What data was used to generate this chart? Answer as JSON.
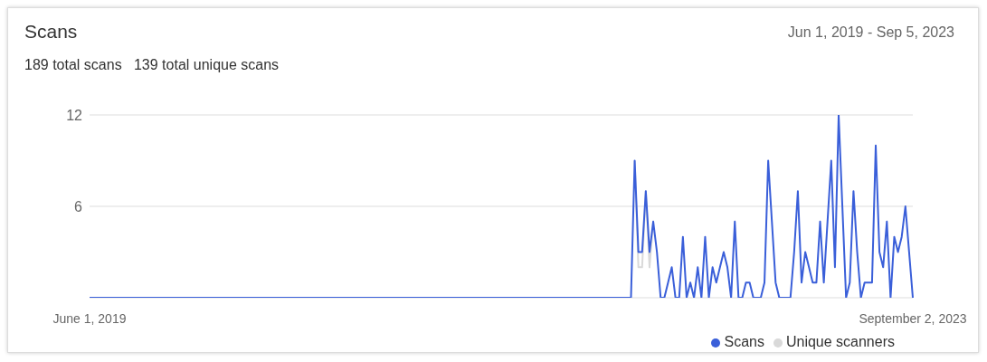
{
  "chart_data": {
    "type": "line",
    "title": "Scans",
    "subtitle": "189 total scans   139 total unique scans",
    "annotations": [
      "Jun 1, 2019 - Sep 5, 2023"
    ],
    "categories": [
      "June 1, 2019",
      null,
      null,
      null,
      null,
      null,
      null,
      null,
      null,
      null,
      null,
      null,
      null,
      null,
      null,
      null,
      null,
      null,
      null,
      null,
      null,
      null,
      null,
      null,
      null,
      null,
      null,
      null,
      null,
      null,
      null,
      null,
      null,
      null,
      null,
      null,
      null,
      null,
      null,
      null,
      null,
      null,
      null,
      null,
      null,
      null,
      null,
      null,
      null,
      null,
      null,
      null,
      null,
      null,
      null,
      null,
      null,
      null,
      null,
      null,
      null,
      null,
      null,
      null,
      null,
      null,
      null,
      null,
      null,
      null,
      null,
      null,
      null,
      null,
      null,
      null,
      null,
      null,
      null,
      null,
      null,
      null,
      null,
      null,
      null,
      null,
      null,
      null,
      null,
      null,
      null,
      null,
      null,
      null,
      null,
      null,
      null,
      null,
      null,
      null,
      null,
      null,
      null,
      null,
      null,
      null,
      null,
      null,
      null,
      null,
      null,
      null,
      null,
      null,
      null,
      null,
      null,
      null,
      null,
      null,
      null,
      null,
      null,
      null,
      null,
      null,
      null,
      null,
      null,
      null,
      null,
      null,
      null,
      null,
      null,
      null,
      null,
      null,
      null,
      null,
      null,
      null,
      null,
      null,
      null,
      null,
      null,
      null,
      null,
      null,
      null,
      null,
      null,
      null,
      null,
      null,
      null,
      null,
      null,
      null,
      null,
      null,
      null,
      null,
      null,
      null,
      null,
      null,
      null,
      null,
      null,
      null,
      null,
      null,
      null,
      null,
      null,
      null,
      null,
      null,
      null,
      null,
      null,
      null,
      null,
      null,
      null,
      null,
      null,
      null,
      null,
      null,
      null,
      null,
      null,
      null,
      null,
      null,
      null,
      null,
      null,
      null,
      null,
      null,
      null,
      null,
      null,
      null,
      null,
      null,
      null,
      null,
      null,
      null,
      null,
      null,
      null,
      null,
      null,
      null,
      null,
      null,
      "September 2, 2023"
    ],
    "series": [
      {
        "name": "Unique scanners",
        "color": "#d9d9d9",
        "values": [
          null,
          null,
          null,
          null,
          null,
          null,
          null,
          null,
          null,
          null,
          null,
          null,
          null,
          null,
          null,
          null,
          null,
          null,
          null,
          null,
          null,
          null,
          null,
          null,
          null,
          null,
          null,
          null,
          null,
          null,
          null,
          null,
          null,
          null,
          null,
          null,
          null,
          null,
          null,
          null,
          null,
          null,
          null,
          null,
          null,
          null,
          null,
          null,
          null,
          null,
          null,
          null,
          null,
          null,
          null,
          null,
          null,
          null,
          null,
          null,
          null,
          null,
          null,
          null,
          null,
          null,
          null,
          null,
          null,
          null,
          null,
          null,
          null,
          null,
          null,
          null,
          null,
          null,
          null,
          null,
          null,
          null,
          null,
          null,
          null,
          null,
          null,
          null,
          null,
          null,
          null,
          null,
          null,
          null,
          null,
          null,
          null,
          null,
          null,
          null,
          null,
          null,
          null,
          null,
          null,
          null,
          null,
          null,
          null,
          null,
          null,
          null,
          null,
          null,
          null,
          null,
          null,
          null,
          null,
          null,
          null,
          null,
          null,
          null,
          null,
          null,
          null,
          null,
          null,
          null,
          null,
          null,
          null,
          null,
          null,
          null,
          null,
          null,
          null,
          null,
          null,
          null,
          null,
          null,
          null,
          null,
          null,
          9,
          2,
          2,
          7,
          2,
          5,
          null,
          null,
          null,
          null,
          null,
          null,
          null,
          null,
          null,
          null,
          null,
          null,
          null,
          null,
          null,
          null,
          null,
          null,
          null,
          null,
          null,
          null,
          null,
          null,
          null,
          null,
          null,
          null,
          null,
          null,
          null,
          null,
          null,
          null,
          null,
          null,
          null,
          null,
          null,
          null,
          null,
          null,
          null,
          null,
          null,
          null,
          null,
          null,
          null,
          null,
          null,
          null,
          null,
          null,
          null,
          null,
          null,
          null,
          null,
          null,
          null,
          null,
          null,
          null,
          null,
          null,
          null,
          null,
          null,
          null
        ]
      },
      {
        "name": "Scans",
        "color": "#3a5fd9",
        "values": [
          0,
          0,
          0,
          0,
          0,
          0,
          0,
          0,
          0,
          0,
          0,
          0,
          0,
          0,
          0,
          0,
          0,
          0,
          0,
          0,
          0,
          0,
          0,
          0,
          0,
          0,
          0,
          0,
          0,
          0,
          0,
          0,
          0,
          0,
          0,
          0,
          0,
          0,
          0,
          0,
          0,
          0,
          0,
          0,
          0,
          0,
          0,
          0,
          0,
          0,
          0,
          0,
          0,
          0,
          0,
          0,
          0,
          0,
          0,
          0,
          0,
          0,
          0,
          0,
          0,
          0,
          0,
          0,
          0,
          0,
          0,
          0,
          0,
          0,
          0,
          0,
          0,
          0,
          0,
          0,
          0,
          0,
          0,
          0,
          0,
          0,
          0,
          0,
          0,
          0,
          0,
          0,
          0,
          0,
          0,
          0,
          0,
          0,
          0,
          0,
          0,
          0,
          0,
          0,
          0,
          0,
          0,
          0,
          0,
          0,
          0,
          0,
          0,
          0,
          0,
          0,
          0,
          0,
          0,
          0,
          0,
          0,
          0,
          0,
          0,
          0,
          0,
          0,
          0,
          0,
          0,
          0,
          0,
          0,
          0,
          0,
          0,
          0,
          0,
          0,
          0,
          0,
          0,
          0,
          0,
          0,
          0,
          9,
          3,
          3,
          7,
          3,
          5,
          3,
          0,
          0,
          1,
          2,
          0,
          0,
          4,
          0,
          1,
          0,
          2,
          0,
          4,
          0,
          2,
          1,
          2,
          3,
          2,
          0,
          5,
          0,
          0,
          1,
          1,
          0,
          0,
          0,
          1,
          9,
          5,
          1,
          0,
          0,
          0,
          0,
          3,
          7,
          1,
          3,
          2,
          1,
          1,
          5,
          1,
          5,
          9,
          2,
          12,
          6,
          0,
          1,
          7,
          3,
          0,
          1,
          1,
          1,
          10,
          3,
          2,
          5,
          0,
          4,
          3,
          4,
          6,
          3,
          0
        ]
      }
    ],
    "ylim": [
      0,
      12
    ],
    "yticks": [
      {
        "value": 0,
        "label": null
      },
      6,
      12
    ],
    "grid": "y",
    "legend": "bottom right",
    "marker": "none",
    "line_style": "solid"
  }
}
